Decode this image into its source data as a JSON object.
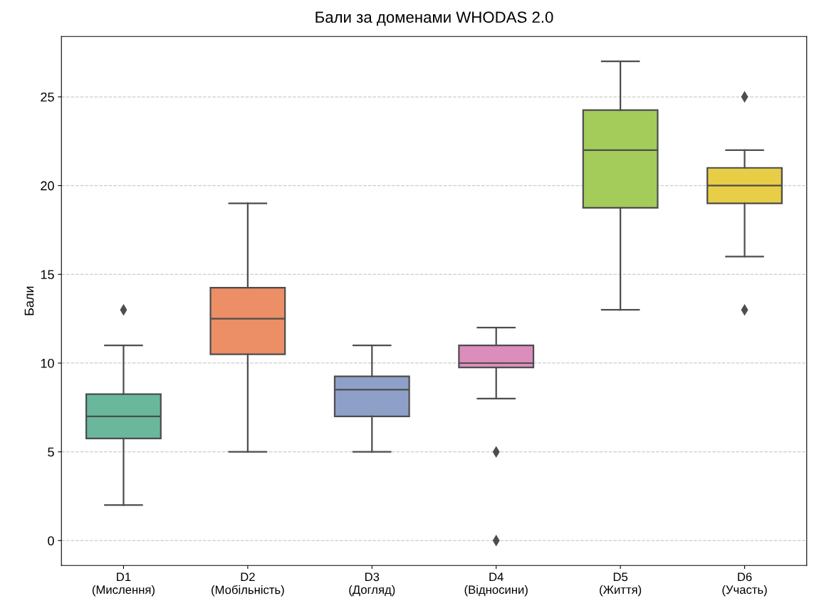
{
  "chart_data": {
    "type": "box",
    "title": "Бали за доменами WHODAS 2.0",
    "ylabel": "Бали",
    "categories": [
      "D1\n(Мислення)",
      "D2\n(Мобільність)",
      "D3\n(Догляд)",
      "D4\n(Відносини)",
      "D5\n(Життя)",
      "D6\n(Участь)"
    ],
    "colors": [
      "#6ab89c",
      "#ec8e66",
      "#8fa0c8",
      "#db8dbc",
      "#a3cc5b",
      "#e8cd47"
    ],
    "boxes": [
      {
        "low": 2,
        "q1": 5.75,
        "median": 7,
        "q3": 8.25,
        "high": 11,
        "outliers": [
          13
        ]
      },
      {
        "low": 5,
        "q1": 10.5,
        "median": 12.5,
        "q3": 14.25,
        "high": 19
      },
      {
        "low": 5,
        "q1": 7,
        "median": 8.5,
        "q3": 9.25,
        "high": 11
      },
      {
        "low": 8,
        "q1": 9.75,
        "median": 10,
        "q3": 11,
        "high": 12,
        "outliers": [
          5,
          0
        ]
      },
      {
        "low": 13,
        "q1": 18.75,
        "median": 22,
        "q3": 24.25,
        "high": 27
      },
      {
        "low": 16,
        "q1": 19,
        "median": 20,
        "q3": 21,
        "high": 22,
        "outliers": [
          25,
          13
        ]
      }
    ],
    "ylim": [
      -1.4,
      28.4
    ],
    "yticks": [
      0,
      5,
      10,
      15,
      20,
      25
    ],
    "grid": "y",
    "line_style": "dashed",
    "marker": "diamond"
  }
}
